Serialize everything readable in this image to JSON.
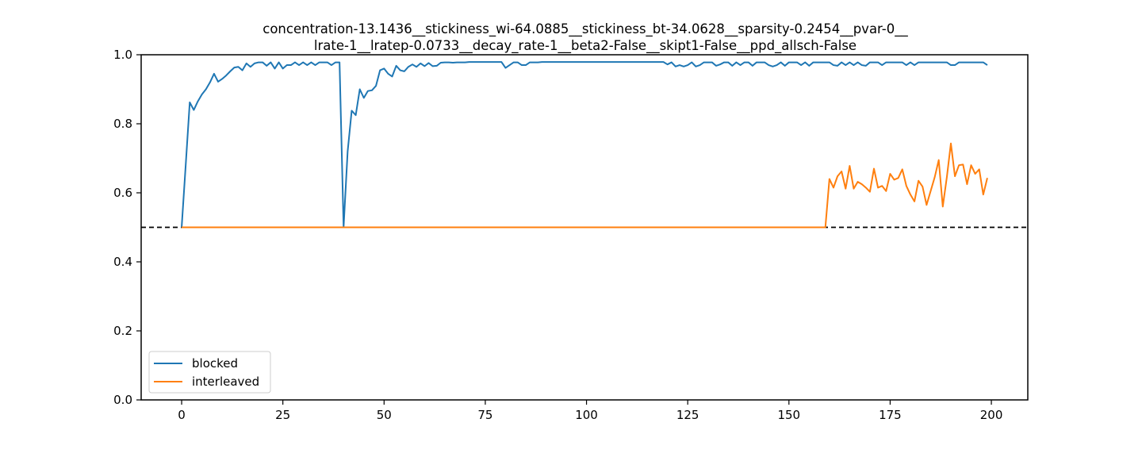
{
  "chart_data": {
    "type": "line",
    "title_lines": [
      "concentration-13.1436__stickiness_wi-64.0885__stickiness_bt-34.0628__sparsity-0.2454__pvar-0__",
      "lrate-1__lratep-0.0733__decay_rate-1__beta2-False__skipt1-False__ppd_allsch-False"
    ],
    "xlabel": "",
    "ylabel": "",
    "xlim": [
      -10,
      209
    ],
    "ylim": [
      0,
      1.0
    ],
    "xticks": [
      0,
      25,
      50,
      75,
      100,
      125,
      150,
      175,
      200
    ],
    "yticks": [
      0.0,
      0.2,
      0.4,
      0.6,
      0.8,
      1.0
    ],
    "xtick_labels": [
      "0",
      "25",
      "50",
      "75",
      "100",
      "125",
      "150",
      "175",
      "200"
    ],
    "ytick_labels": [
      "0.0",
      "0.2",
      "0.4",
      "0.6",
      "0.8",
      "1.0"
    ],
    "grid": false,
    "legend_position": "lower-left",
    "reference_line": {
      "y": 0.5,
      "style": "dashed",
      "color": "#000000"
    },
    "series": [
      {
        "name": "blocked",
        "color": "#1f77b4",
        "x_start": 0,
        "values": [
          0.5,
          0.68,
          0.862,
          0.84,
          0.865,
          0.885,
          0.9,
          0.92,
          0.945,
          0.922,
          0.93,
          0.94,
          0.952,
          0.963,
          0.965,
          0.955,
          0.975,
          0.965,
          0.975,
          0.978,
          0.978,
          0.968,
          0.978,
          0.96,
          0.978,
          0.96,
          0.97,
          0.97,
          0.978,
          0.97,
          0.978,
          0.97,
          0.978,
          0.97,
          0.978,
          0.978,
          0.978,
          0.97,
          0.978,
          0.978,
          0.5,
          0.72,
          0.838,
          0.825,
          0.9,
          0.875,
          0.895,
          0.897,
          0.91,
          0.955,
          0.96,
          0.945,
          0.937,
          0.968,
          0.955,
          0.952,
          0.965,
          0.972,
          0.965,
          0.975,
          0.967,
          0.976,
          0.967,
          0.968,
          0.977,
          0.978,
          0.978,
          0.977,
          0.978,
          0.978,
          0.978,
          0.979,
          0.979,
          0.979,
          0.979,
          0.979,
          0.979,
          0.979,
          0.979,
          0.979,
          0.962,
          0.97,
          0.978,
          0.978,
          0.97,
          0.97,
          0.978,
          0.978,
          0.978,
          0.979,
          0.979,
          0.979,
          0.979,
          0.979,
          0.979,
          0.979,
          0.979,
          0.979,
          0.979,
          0.979,
          0.979,
          0.979,
          0.979,
          0.979,
          0.979,
          0.979,
          0.979,
          0.979,
          0.979,
          0.979,
          0.979,
          0.979,
          0.979,
          0.979,
          0.979,
          0.979,
          0.979,
          0.979,
          0.979,
          0.979,
          0.972,
          0.978,
          0.966,
          0.97,
          0.966,
          0.97,
          0.978,
          0.966,
          0.97,
          0.978,
          0.978,
          0.978,
          0.968,
          0.972,
          0.978,
          0.978,
          0.968,
          0.978,
          0.97,
          0.978,
          0.978,
          0.968,
          0.978,
          0.978,
          0.978,
          0.97,
          0.966,
          0.97,
          0.978,
          0.968,
          0.978,
          0.978,
          0.978,
          0.97,
          0.978,
          0.968,
          0.978,
          0.978,
          0.978,
          0.978,
          0.978,
          0.97,
          0.968,
          0.978,
          0.97,
          0.978,
          0.97,
          0.978,
          0.97,
          0.968,
          0.978,
          0.978,
          0.978,
          0.97,
          0.978,
          0.978,
          0.978,
          0.978,
          0.978,
          0.97,
          0.978,
          0.97,
          0.978,
          0.978,
          0.978,
          0.978,
          0.978,
          0.978,
          0.978,
          0.978,
          0.97,
          0.97,
          0.978,
          0.978,
          0.978,
          0.978,
          0.978,
          0.978,
          0.978,
          0.97
        ]
      },
      {
        "name": "interleaved",
        "color": "#ff7f0e",
        "x_start": 0,
        "values": [
          0.5,
          0.5,
          0.5,
          0.5,
          0.5,
          0.5,
          0.5,
          0.5,
          0.5,
          0.5,
          0.5,
          0.5,
          0.5,
          0.5,
          0.5,
          0.5,
          0.5,
          0.5,
          0.5,
          0.5,
          0.5,
          0.5,
          0.5,
          0.5,
          0.5,
          0.5,
          0.5,
          0.5,
          0.5,
          0.5,
          0.5,
          0.5,
          0.5,
          0.5,
          0.5,
          0.5,
          0.5,
          0.5,
          0.5,
          0.5,
          0.5,
          0.5,
          0.5,
          0.5,
          0.5,
          0.5,
          0.5,
          0.5,
          0.5,
          0.5,
          0.5,
          0.5,
          0.5,
          0.5,
          0.5,
          0.5,
          0.5,
          0.5,
          0.5,
          0.5,
          0.5,
          0.5,
          0.5,
          0.5,
          0.5,
          0.5,
          0.5,
          0.5,
          0.5,
          0.5,
          0.5,
          0.5,
          0.5,
          0.5,
          0.5,
          0.5,
          0.5,
          0.5,
          0.5,
          0.5,
          0.5,
          0.5,
          0.5,
          0.5,
          0.5,
          0.5,
          0.5,
          0.5,
          0.5,
          0.5,
          0.5,
          0.5,
          0.5,
          0.5,
          0.5,
          0.5,
          0.5,
          0.5,
          0.5,
          0.5,
          0.5,
          0.5,
          0.5,
          0.5,
          0.5,
          0.5,
          0.5,
          0.5,
          0.5,
          0.5,
          0.5,
          0.5,
          0.5,
          0.5,
          0.5,
          0.5,
          0.5,
          0.5,
          0.5,
          0.5,
          0.5,
          0.5,
          0.5,
          0.5,
          0.5,
          0.5,
          0.5,
          0.5,
          0.5,
          0.5,
          0.5,
          0.5,
          0.5,
          0.5,
          0.5,
          0.5,
          0.5,
          0.5,
          0.5,
          0.5,
          0.5,
          0.5,
          0.5,
          0.5,
          0.5,
          0.5,
          0.5,
          0.5,
          0.5,
          0.5,
          0.5,
          0.5,
          0.5,
          0.5,
          0.5,
          0.5,
          0.5,
          0.5,
          0.5,
          0.5,
          0.64,
          0.615,
          0.648,
          0.662,
          0.612,
          0.678,
          0.612,
          0.632,
          0.625,
          0.615,
          0.603,
          0.67,
          0.615,
          0.62,
          0.605,
          0.655,
          0.638,
          0.643,
          0.668,
          0.62,
          0.595,
          0.575,
          0.635,
          0.618,
          0.565,
          0.605,
          0.645,
          0.695,
          0.56,
          0.645,
          0.743,
          0.648,
          0.68,
          0.682,
          0.625,
          0.68,
          0.655,
          0.668,
          0.595,
          0.643
        ]
      }
    ]
  }
}
